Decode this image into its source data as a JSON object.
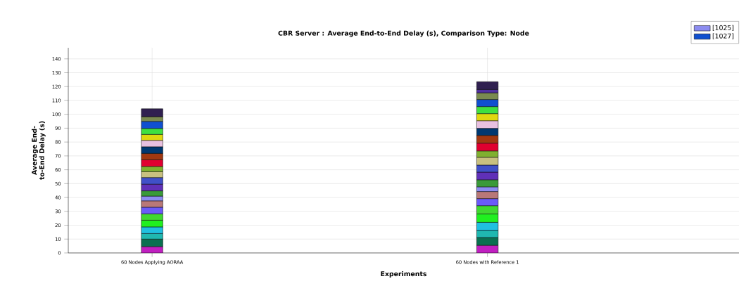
{
  "chart_data": {
    "type": "bar",
    "stacked": true,
    "title": "CBR Server :  Average End-to-End Delay (s), Comparison Type: Node",
    "xlabel": "Experiments",
    "ylabel": "Average End-to-End Delay (s)",
    "categories": [
      "60 Nodes Applying AORAA",
      "60 Nodes with Reference 1"
    ],
    "ylim": [
      0,
      148
    ],
    "yticks": [
      0,
      10,
      20,
      30,
      40,
      50,
      60,
      70,
      80,
      90,
      100,
      110,
      120,
      130,
      140
    ],
    "grid": true,
    "legend": "top right",
    "series": [
      {
        "color": "#c020c0",
        "values": [
          4.6,
          5.5
        ]
      },
      {
        "color": "#0a7050",
        "values": [
          5.4,
          5.6
        ]
      },
      {
        "color": "#20b8b0",
        "values": [
          4.0,
          5.1
        ]
      },
      {
        "color": "#20c0e0",
        "values": [
          4.8,
          5.9
        ]
      },
      {
        "color": "#20f020",
        "values": [
          4.8,
          6.0
        ]
      },
      {
        "color": "#40d830",
        "values": [
          4.6,
          6.0
        ]
      },
      {
        "color": "#6a5af8",
        "values": [
          4.8,
          5.1
        ]
      },
      {
        "color": "#b87878",
        "values": [
          4.6,
          5.1
        ]
      },
      {
        "name": "[1025]",
        "color": "#8c8cf0",
        "values": [
          3.4,
          3.4
        ]
      },
      {
        "color": "#3a9a3a",
        "values": [
          3.8,
          5.1
        ]
      },
      {
        "color": "#6030b8",
        "values": [
          4.8,
          5.5
        ]
      },
      {
        "color": "#4050c8",
        "values": [
          4.8,
          5.1
        ]
      },
      {
        "color": "#c8c080",
        "values": [
          4.2,
          5.6
        ]
      },
      {
        "color": "#80b030",
        "values": [
          3.8,
          4.6
        ]
      },
      {
        "color": "#e00030",
        "values": [
          4.8,
          5.6
        ]
      },
      {
        "color": "#a03810",
        "values": [
          4.6,
          5.6
        ]
      },
      {
        "color": "#003870",
        "values": [
          4.8,
          5.1
        ]
      },
      {
        "color": "#e8c0e0",
        "values": [
          4.6,
          5.5
        ]
      },
      {
        "color": "#e0d810",
        "values": [
          4.3,
          5.1
        ]
      },
      {
        "color": "#40e040",
        "values": [
          4.3,
          5.1
        ]
      },
      {
        "name": "[1027]",
        "color": "#1050d0",
        "values": [
          5.1,
          5.1
        ]
      },
      {
        "color": "#7a8a50",
        "values": [
          3.4,
          4.8
        ]
      },
      {
        "color": "#5030a0",
        "values": [
          null,
          2.4
        ]
      },
      {
        "color": "#302050",
        "values": [
          5.7,
          5.6
        ]
      }
    ]
  }
}
